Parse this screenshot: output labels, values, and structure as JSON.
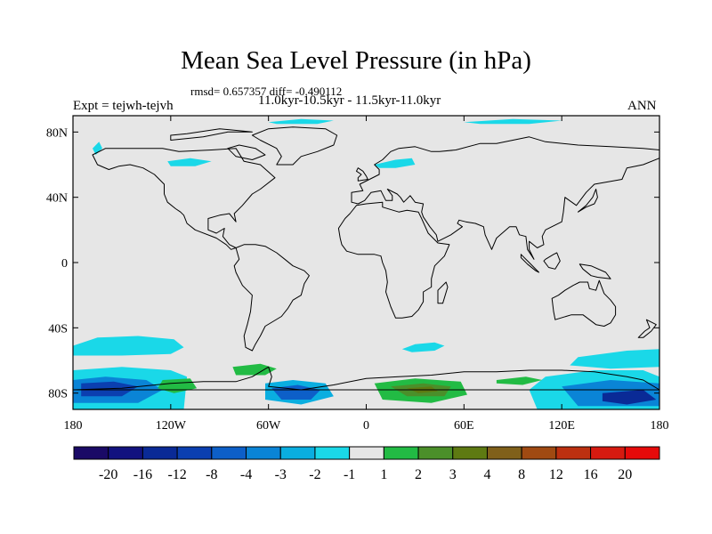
{
  "chart_data": {
    "type": "heatmap",
    "title": "Mean Sea Level Pressure (in hPa)",
    "stats_line": "rmsd= 0.657357 diff= -0.490112",
    "period_line": "11.0kyr-10.5kyr - 11.5kyr-11.0kyr",
    "left_label": "Expt = tejwh-tejvh",
    "right_label": "ANN",
    "x_axis": {
      "range": [
        -180,
        180
      ],
      "ticks": [
        -180,
        -120,
        -60,
        0,
        60,
        120,
        180
      ],
      "tick_labels": [
        "180",
        "120W",
        "60W",
        "0",
        "60E",
        "120E",
        "180"
      ]
    },
    "y_axis": {
      "range": [
        -90,
        90
      ],
      "ticks": [
        80,
        40,
        0,
        -40,
        -80
      ],
      "tick_labels": [
        "80N",
        "40N",
        "0",
        "40S",
        "80S"
      ]
    },
    "colorbar": {
      "colors": [
        "#1a0a66",
        "#12127f",
        "#0a2a96",
        "#0b3fb0",
        "#0d5fc8",
        "#0a84d6",
        "#0aaee0",
        "#1ad8e8",
        "#e6e6e6",
        "#22bb44",
        "#4b8f2a",
        "#5e7a12",
        "#80601a",
        "#a04a12",
        "#bc3010",
        "#d61a10",
        "#e60a0a"
      ],
      "levels": [
        "-20",
        "-16",
        "-12",
        "-8",
        "-4",
        "-3",
        "-2",
        "-1",
        "1",
        "2",
        "3",
        "4",
        "8",
        "12",
        "16",
        "20"
      ]
    },
    "anomaly_regions": [
      {
        "lon": [
          -170,
          -110
        ],
        "lat": [
          -60,
          -40
        ],
        "level": "-2 to -1"
      },
      {
        "lon": [
          -60,
          -20
        ],
        "lat": [
          -85,
          -70
        ],
        "level": "-8 to -2"
      },
      {
        "lon": [
          -180,
          -110
        ],
        "lat": [
          -90,
          -70
        ],
        "level": "-12 to -2"
      },
      {
        "lon": [
          120,
          180
        ],
        "lat": [
          -90,
          -70
        ],
        "level": "-12 to -2"
      },
      {
        "lon": [
          10,
          60
        ],
        "lat": [
          -85,
          -72
        ],
        "level": "2 to 4"
      },
      {
        "lon": [
          -80,
          -50
        ],
        "lat": [
          -72,
          -65
        ],
        "level": "1 to 2"
      },
      {
        "lon": [
          -120,
          -100
        ],
        "lat": [
          -80,
          -70
        ],
        "level": "1 to 2"
      },
      {
        "lon": [
          80,
          110
        ],
        "lat": [
          -75,
          -70
        ],
        "level": "1 to 2"
      },
      {
        "lon": [
          0,
          30
        ],
        "lat": [
          55,
          65
        ],
        "level": "-1 to -2"
      },
      {
        "lon": [
          -120,
          -100
        ],
        "lat": [
          60,
          68
        ],
        "level": "-1 to -2"
      },
      {
        "lon": [
          30,
          50
        ],
        "lat": [
          -52,
          -48
        ],
        "level": "-1 to -2"
      }
    ]
  }
}
